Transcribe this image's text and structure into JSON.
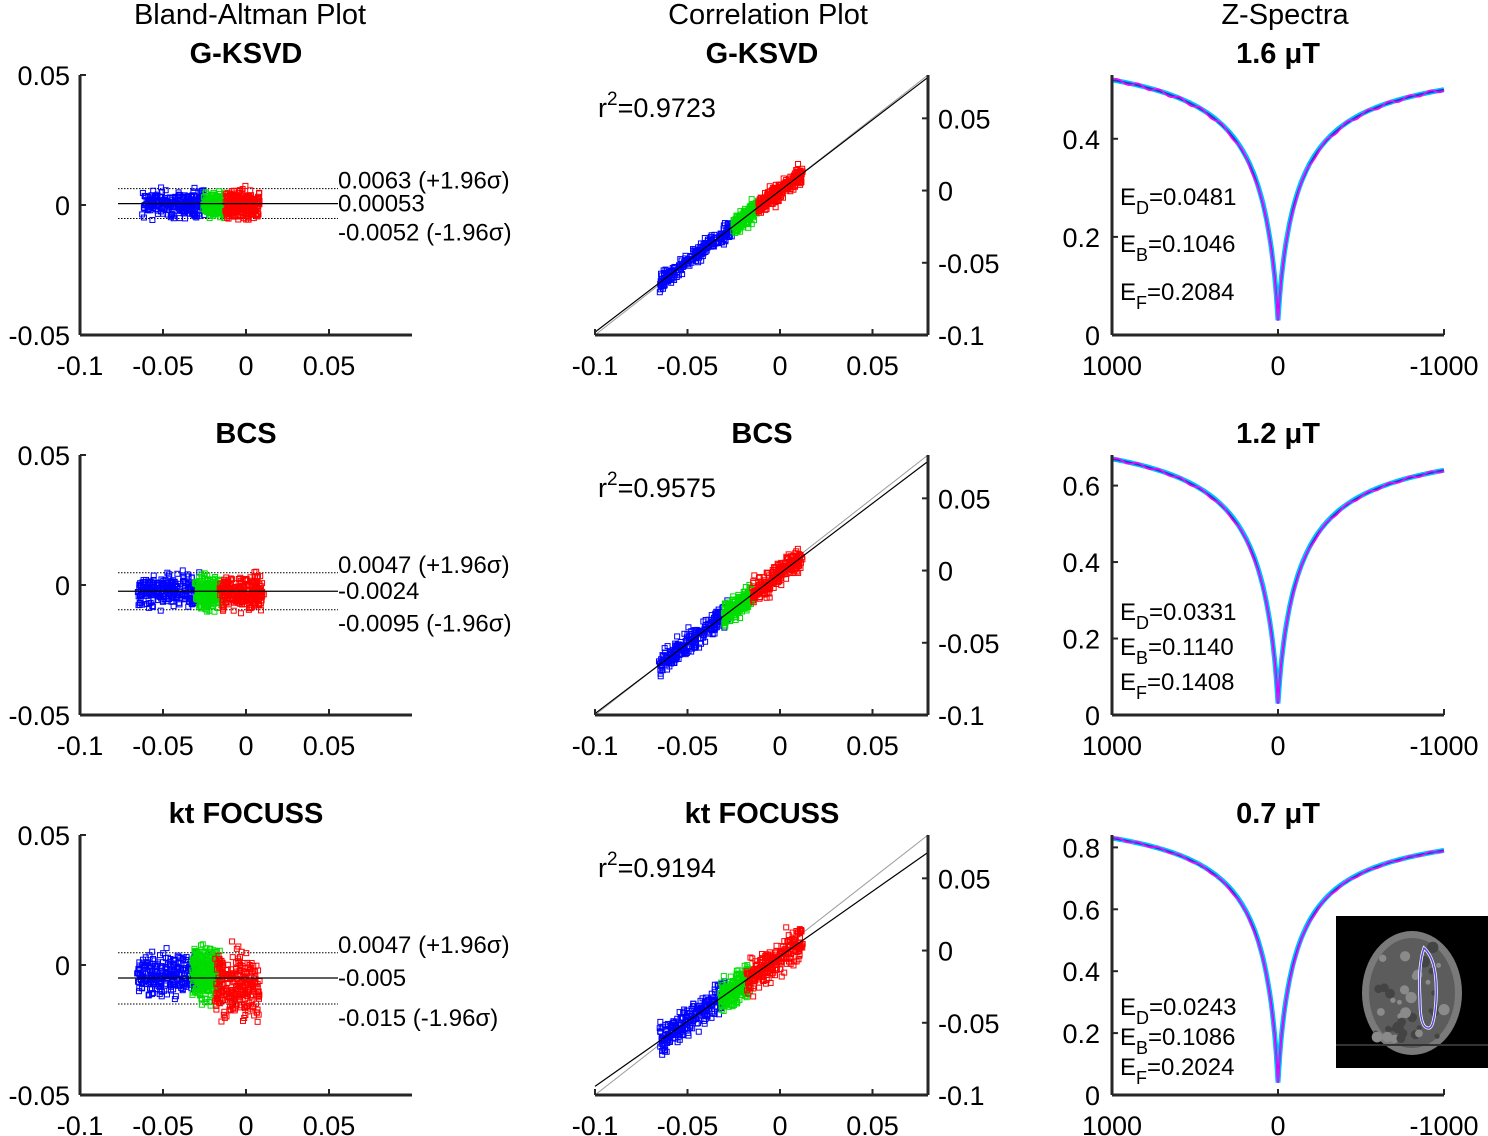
{
  "figure": {
    "column_titles": {
      "bland_altman": "Bland-Altman Plot",
      "correlation": "Correlation Plot",
      "zspectra": "Z-Spectra"
    },
    "colors": {
      "series_low": "#0000ff",
      "series_mid": "#00dd00",
      "series_high": "#ff0000",
      "curve_a": "#00bfff",
      "curve_b": "#3333cc",
      "curve_c": "#ff00ff"
    },
    "inset": {
      "name": "brain MRI slice with outlined ROI"
    }
  },
  "chart_data": [
    {
      "type": "scatter",
      "subtype": "bland-altman",
      "title": "G-KSVD",
      "xlim": [
        -0.1,
        0.1
      ],
      "ylim": [
        -0.05,
        0.05
      ],
      "xticks": [
        "-0.1",
        "-0.05",
        "0",
        "0.05"
      ],
      "yticks": [
        "0.05",
        "0",
        "-0.05"
      ],
      "mean_diff": 0.00053,
      "upper_loa": 0.0063,
      "lower_loa": -0.0052,
      "mean_label": "0.00053",
      "upper_label": "0.0063 (+1.96σ)",
      "lower_label": "-0.0052 (-1.96σ)",
      "clusters": [
        {
          "series": "low",
          "x_range": [
            -0.062,
            -0.025
          ],
          "y_center": 0.0005,
          "spread": 0.0025
        },
        {
          "series": "mid",
          "x_range": [
            -0.025,
            -0.012
          ],
          "y_center": 0.0,
          "spread": 0.0022
        },
        {
          "series": "high",
          "x_range": [
            -0.012,
            0.008
          ],
          "y_center": 0.0,
          "spread": 0.0025
        }
      ]
    },
    {
      "type": "scatter",
      "subtype": "correlation",
      "title": "G-KSVD",
      "r2_label": "r",
      "r2_exp": "2",
      "r2_value": "=0.9723",
      "xlim": [
        -0.1,
        0.08
      ],
      "ylim": [
        -0.1,
        0.08
      ],
      "xticks": [
        "-0.1",
        "-0.05",
        "0",
        "0.05"
      ],
      "yticks": [
        "0.05",
        "0",
        "-0.05",
        "-0.1"
      ],
      "fit": {
        "slope": 0.98,
        "intercept": 0.0
      },
      "clusters": [
        {
          "series": "low",
          "x_range": [
            -0.065,
            -0.025
          ],
          "spread": 0.003
        },
        {
          "series": "mid",
          "x_range": [
            -0.025,
            -0.012
          ],
          "spread": 0.003
        },
        {
          "series": "high",
          "x_range": [
            -0.012,
            0.012
          ],
          "spread": 0.003
        }
      ]
    },
    {
      "type": "line",
      "subtype": "z-spectrum",
      "title": "1.6 μT",
      "xlim": [
        1000,
        -1000
      ],
      "ylim": [
        0,
        0.53
      ],
      "xticks": [
        "1000",
        "0",
        "-1000"
      ],
      "yticks": [
        "0.4",
        "0.2",
        "0"
      ],
      "curve": {
        "left_value": 0.52,
        "right_value": 0.5,
        "min_value": 0.03,
        "width": 0.29
      },
      "errors": [
        {
          "label": "E",
          "sub": "D",
          "value": "=0.0481"
        },
        {
          "label": "E",
          "sub": "B",
          "value": "=0.1046"
        },
        {
          "label": "E",
          "sub": "F",
          "value": "=0.2084"
        }
      ]
    },
    {
      "type": "scatter",
      "subtype": "bland-altman",
      "title": "BCS",
      "xlim": [
        -0.1,
        0.1
      ],
      "ylim": [
        -0.05,
        0.05
      ],
      "xticks": [
        "-0.1",
        "-0.05",
        "0",
        "0.05"
      ],
      "yticks": [
        "0.05",
        "0",
        "-0.05"
      ],
      "mean_diff": -0.0024,
      "upper_loa": 0.0047,
      "lower_loa": -0.0095,
      "mean_label": "-0.0024",
      "upper_label": "0.0047 (+1.96σ)",
      "lower_label": "-0.0095 (-1.96σ)",
      "clusters": [
        {
          "series": "low",
          "x_range": [
            -0.065,
            -0.028
          ],
          "y_center": -0.002,
          "spread": 0.003
        },
        {
          "series": "mid",
          "x_range": [
            -0.03,
            -0.015
          ],
          "y_center": -0.003,
          "spread": 0.003
        },
        {
          "series": "high",
          "x_range": [
            -0.015,
            0.01
          ],
          "y_center": -0.003,
          "spread": 0.003
        }
      ]
    },
    {
      "type": "scatter",
      "subtype": "correlation",
      "title": "BCS",
      "r2_label": "r",
      "r2_exp": "2",
      "r2_value": "=0.9575",
      "xlim": [
        -0.1,
        0.08
      ],
      "ylim": [
        -0.1,
        0.08
      ],
      "xticks": [
        "-0.1",
        "-0.05",
        "0",
        "0.05"
      ],
      "yticks": [
        "0.05",
        "0",
        "-0.05",
        "-0.1"
      ],
      "fit": {
        "slope": 0.97,
        "intercept": -0.002
      },
      "clusters": [
        {
          "series": "low",
          "x_range": [
            -0.065,
            -0.028
          ],
          "spread": 0.004
        },
        {
          "series": "mid",
          "x_range": [
            -0.03,
            -0.015
          ],
          "spread": 0.004
        },
        {
          "series": "high",
          "x_range": [
            -0.015,
            0.012
          ],
          "spread": 0.004
        }
      ]
    },
    {
      "type": "line",
      "subtype": "z-spectrum",
      "title": "1.2 μT",
      "xlim": [
        1000,
        -1000
      ],
      "ylim": [
        0,
        0.68
      ],
      "xticks": [
        "1000",
        "0",
        "-1000"
      ],
      "yticks": [
        "0.6",
        "0.4",
        "0.2",
        "0"
      ],
      "curve": {
        "left_value": 0.67,
        "right_value": 0.64,
        "min_value": 0.03,
        "width": 0.3
      },
      "errors": [
        {
          "label": "E",
          "sub": "D",
          "value": "=0.0331"
        },
        {
          "label": "E",
          "sub": "B",
          "value": "=0.1140"
        },
        {
          "label": "E",
          "sub": "F",
          "value": "=0.1408"
        }
      ]
    },
    {
      "type": "scatter",
      "subtype": "bland-altman",
      "title": "kt FOCUSS",
      "xlim": [
        -0.1,
        0.1
      ],
      "ylim": [
        -0.05,
        0.05
      ],
      "xticks": [
        "-0.1",
        "-0.05",
        "0",
        "0.05"
      ],
      "yticks": [
        "0.05",
        "0",
        "-0.05"
      ],
      "mean_diff": -0.005,
      "upper_loa": 0.0047,
      "lower_loa": -0.015,
      "mean_label": "-0.005",
      "upper_label": "0.0047 (+1.96σ)",
      "lower_label": "-0.015 (-1.96σ)",
      "clusters": [
        {
          "series": "low",
          "x_range": [
            -0.065,
            -0.03
          ],
          "y_center": -0.004,
          "spread": 0.004
        },
        {
          "series": "mid",
          "x_range": [
            -0.032,
            -0.016
          ],
          "y_center": -0.003,
          "spread": 0.005
        },
        {
          "series": "high",
          "x_range": [
            -0.018,
            0.008
          ],
          "y_center": -0.008,
          "spread": 0.006
        }
      ]
    },
    {
      "type": "scatter",
      "subtype": "correlation",
      "title": "kt FOCUSS",
      "r2_label": "r",
      "r2_exp": "2",
      "r2_value": "=0.9194",
      "xlim": [
        -0.1,
        0.08
      ],
      "ylim": [
        -0.1,
        0.08
      ],
      "xticks": [
        "-0.1",
        "-0.05",
        "0",
        "0.05"
      ],
      "yticks": [
        "0.05",
        "0",
        "-0.05",
        "-0.1"
      ],
      "fit": {
        "slope": 0.9,
        "intercept": -0.004
      },
      "clusters": [
        {
          "series": "low",
          "x_range": [
            -0.065,
            -0.03
          ],
          "spread": 0.005
        },
        {
          "series": "mid",
          "x_range": [
            -0.032,
            -0.016
          ],
          "spread": 0.005
        },
        {
          "series": "high",
          "x_range": [
            -0.018,
            0.012
          ],
          "spread": 0.006
        }
      ]
    },
    {
      "type": "line",
      "subtype": "z-spectrum",
      "title": "0.7 μT",
      "xlim": [
        1000,
        -1000
      ],
      "ylim": [
        0,
        0.84
      ],
      "xticks": [
        "1000",
        "0",
        "-1000"
      ],
      "yticks": [
        "0.8",
        "0.6",
        "0.4",
        "0.2",
        "0"
      ],
      "curve": {
        "left_value": 0.83,
        "right_value": 0.79,
        "min_value": 0.04,
        "width": 0.26
      },
      "errors": [
        {
          "label": "E",
          "sub": "D",
          "value": "=0.0243"
        },
        {
          "label": "E",
          "sub": "B",
          "value": "=0.1086"
        },
        {
          "label": "E",
          "sub": "F",
          "value": "=0.2024"
        }
      ]
    }
  ]
}
